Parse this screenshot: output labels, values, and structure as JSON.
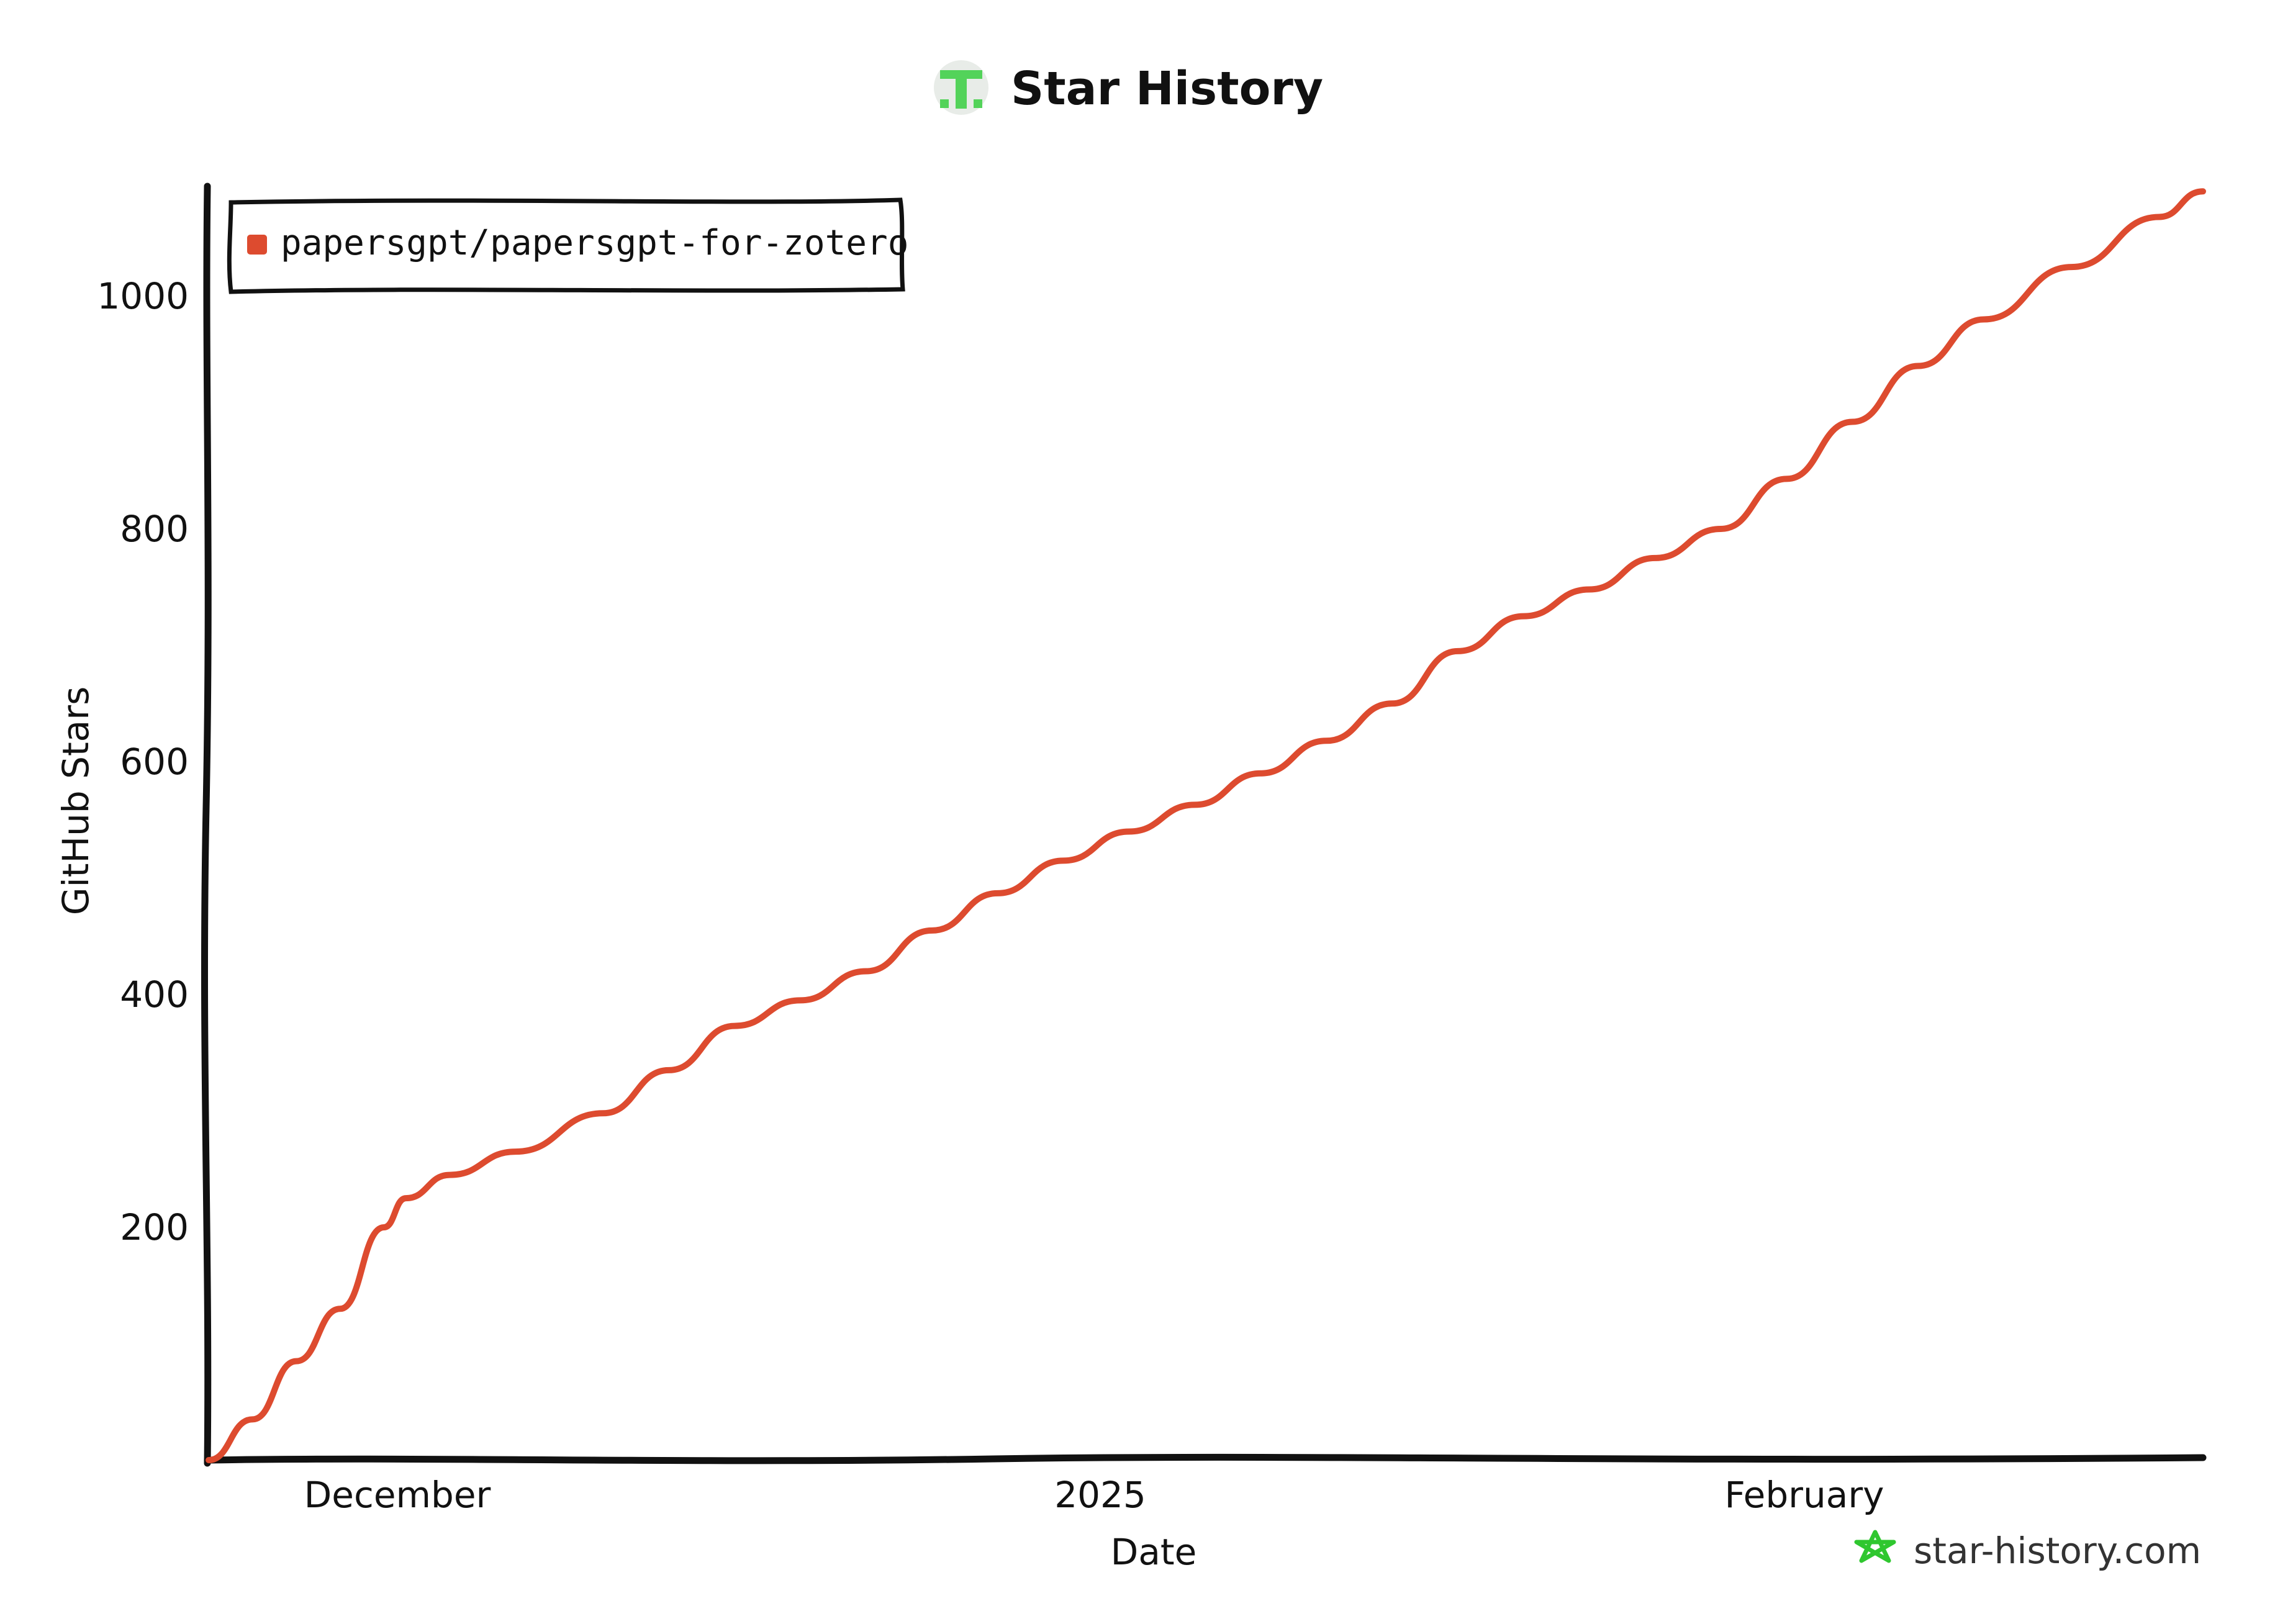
{
  "chart_data": {
    "type": "line",
    "title": "Star History",
    "xlabel": "Date",
    "ylabel": "GitHub Stars",
    "x_tick_labels": [
      "December",
      "2025",
      "February"
    ],
    "y_ticks": [
      200,
      400,
      600,
      800,
      1000
    ],
    "ylim": [
      0,
      1090
    ],
    "legend_position": "top-left",
    "series": [
      {
        "name": "papersgpt/papersgpt-for-zotero",
        "color": "#dd4b2f",
        "points": [
          [
            "2024-11-18",
            0
          ],
          [
            "2024-11-20",
            35
          ],
          [
            "2024-11-22",
            85
          ],
          [
            "2024-11-24",
            130
          ],
          [
            "2024-11-26",
            200
          ],
          [
            "2024-11-27",
            225
          ],
          [
            "2024-11-29",
            245
          ],
          [
            "2024-12-02",
            265
          ],
          [
            "2024-12-06",
            298
          ],
          [
            "2024-12-09",
            335
          ],
          [
            "2024-12-12",
            373
          ],
          [
            "2024-12-15",
            395
          ],
          [
            "2024-12-18",
            420
          ],
          [
            "2024-12-21",
            455
          ],
          [
            "2024-12-24",
            487
          ],
          [
            "2024-12-27",
            515
          ],
          [
            "2024-12-30",
            540
          ],
          [
            "2025-01-02",
            563
          ],
          [
            "2025-01-05",
            590
          ],
          [
            "2025-01-08",
            618
          ],
          [
            "2025-01-11",
            650
          ],
          [
            "2025-01-14",
            695
          ],
          [
            "2025-01-17",
            725
          ],
          [
            "2025-01-20",
            748
          ],
          [
            "2025-01-23",
            775
          ],
          [
            "2025-01-26",
            800
          ],
          [
            "2025-01-29",
            843
          ],
          [
            "2025-02-01",
            892
          ],
          [
            "2025-02-04",
            940
          ],
          [
            "2025-02-07",
            980
          ],
          [
            "2025-02-11",
            1025
          ],
          [
            "2025-02-15",
            1068
          ],
          [
            "2025-02-17",
            1090
          ]
        ]
      }
    ]
  },
  "watermark": "star-history.com",
  "colors": {
    "series": "#dd4b2f",
    "logo_green": "#53d35a",
    "axis": "#111111"
  },
  "icons": {
    "title_logo": "star-history-logo-icon",
    "watermark_logo": "star-outline-icon"
  }
}
